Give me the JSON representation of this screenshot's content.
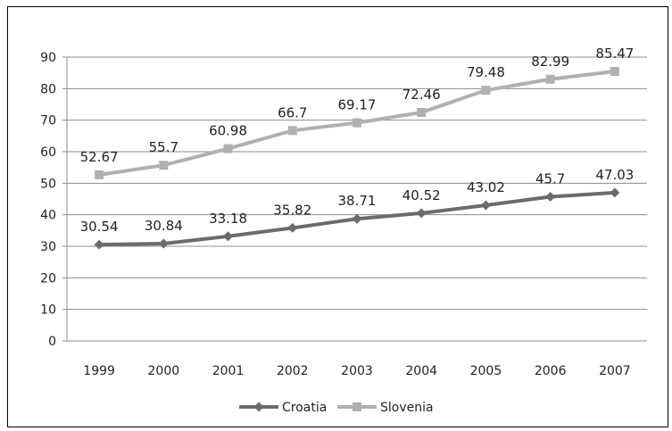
{
  "chart_data": {
    "type": "line",
    "categories": [
      "1999",
      "2000",
      "2001",
      "2002",
      "2003",
      "2004",
      "2005",
      "2006",
      "2007"
    ],
    "series": [
      {
        "name": "Croatia",
        "values": [
          30.54,
          30.84,
          33.18,
          35.82,
          38.71,
          40.52,
          43.02,
          45.7,
          47.03
        ],
        "labels": [
          "30.54",
          "30.84",
          "33.18",
          "35.82",
          "38.71",
          "40.52",
          "43.02",
          "45.7",
          "47.03"
        ],
        "color": "#6b6b6b",
        "marker": "diamond"
      },
      {
        "name": "Slovenia",
        "values": [
          52.67,
          55.7,
          60.98,
          66.7,
          69.17,
          72.46,
          79.48,
          82.99,
          85.47
        ],
        "labels": [
          "52.67",
          "55.7",
          "60.98",
          "66.7",
          "69.17",
          "72.46",
          "79.48",
          "82.99",
          "85.47"
        ],
        "color": "#b0b0b0",
        "marker": "square"
      }
    ],
    "yticks": [
      "0",
      "10",
      "20",
      "30",
      "40",
      "50",
      "60",
      "70",
      "80",
      "90"
    ],
    "ylim": [
      0,
      90
    ],
    "grid": true,
    "legend": "bottom"
  }
}
